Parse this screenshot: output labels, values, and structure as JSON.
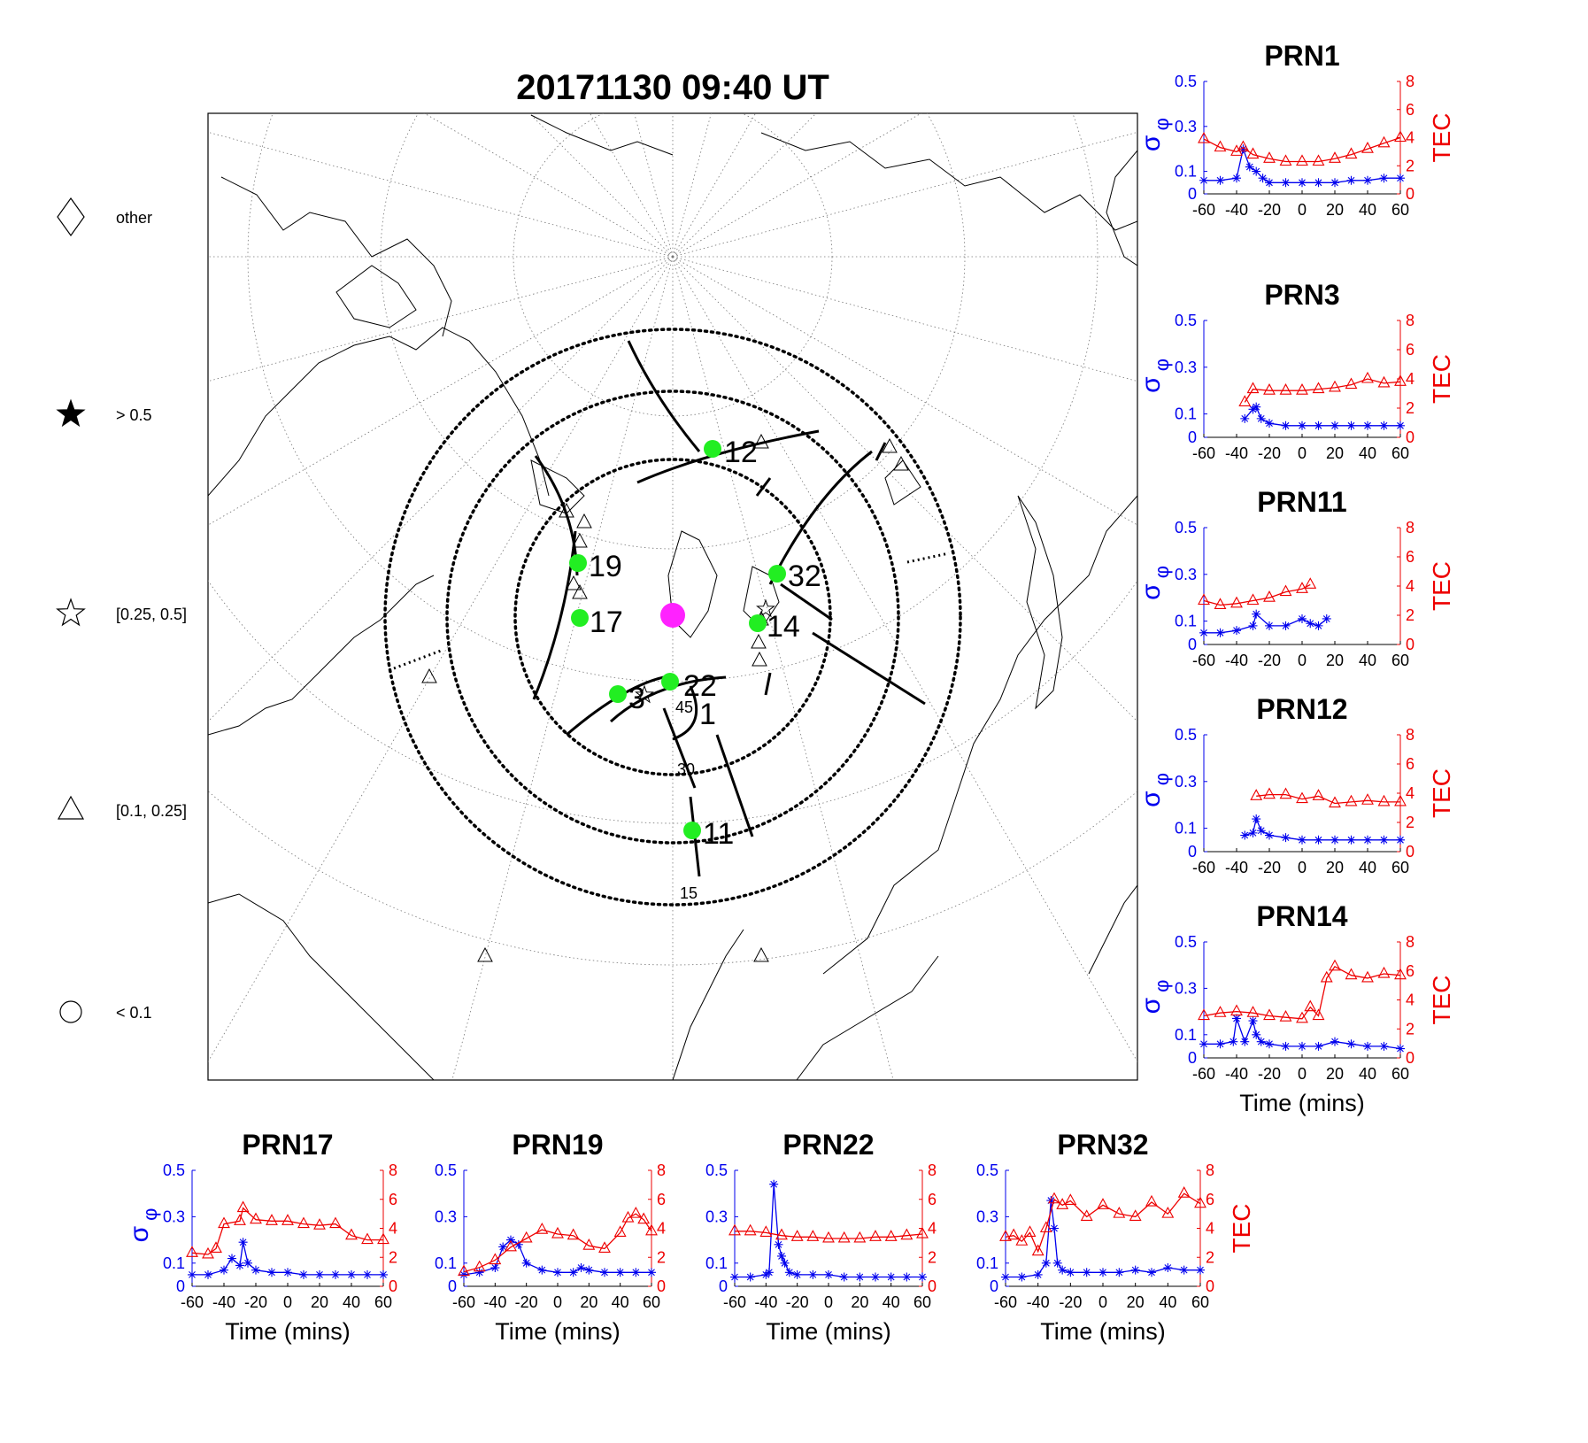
{
  "map": {
    "title": "20171130 09:40 UT",
    "elevation_labels": [
      "45",
      "30",
      "15"
    ],
    "satellites": [
      "12",
      "19",
      "17",
      "32",
      "14",
      "3",
      "22",
      "1",
      "11"
    ],
    "colors": {
      "ipp": "#22ee22",
      "station": "#ff22ff",
      "rings": "#000000"
    }
  },
  "legend": [
    {
      "symbol": "diamond-outline",
      "label": "other"
    },
    {
      "symbol": "star-filled",
      "label": "> 0.5"
    },
    {
      "symbol": "star-outline",
      "label": "[0.25, 0.5]"
    },
    {
      "symbol": "triangle-outline",
      "label": "[0.1, 0.25]"
    },
    {
      "symbol": "circle-outline",
      "label": "< 0.1"
    }
  ],
  "axes_text": {
    "left_ylabel": "σ",
    "left_ylabel_sub": "φ",
    "right_ylabel": "TEC",
    "xlabel": "Time (mins)",
    "left_ticks": [
      "0.5",
      "0.3",
      "0.1",
      "0"
    ],
    "right_ticks": [
      "8",
      "6",
      "4",
      "2",
      "0"
    ],
    "x_ticks": [
      "-60",
      "-40",
      "-20",
      "0",
      "20",
      "40",
      "60"
    ]
  },
  "colors": {
    "sigma": "#0000ee",
    "tec": "#ee0000"
  },
  "chart_data": [
    {
      "type": "line",
      "title": "PRN1",
      "xlim": [
        -60,
        60
      ],
      "ylim_left": [
        0,
        0.5
      ],
      "ylim_right": [
        0,
        8
      ],
      "series": [
        {
          "axis": "left",
          "marker": "asterisk",
          "x": [
            -60,
            -50,
            -40,
            -36,
            -32,
            -28,
            -24,
            -20,
            -10,
            0,
            10,
            20,
            30,
            40,
            50,
            60
          ],
          "values": [
            0.06,
            0.06,
            0.07,
            0.2,
            0.12,
            0.1,
            0.07,
            0.05,
            0.05,
            0.05,
            0.05,
            0.05,
            0.06,
            0.06,
            0.07,
            0.07
          ]
        },
        {
          "axis": "right",
          "marker": "triangle",
          "x": [
            -60,
            -50,
            -40,
            -36,
            -30,
            -20,
            -10,
            0,
            10,
            20,
            30,
            40,
            50,
            60
          ],
          "values": [
            3.9,
            3.3,
            3.0,
            3.3,
            2.8,
            2.5,
            2.3,
            2.3,
            2.3,
            2.5,
            2.8,
            3.2,
            3.6,
            4.0
          ]
        }
      ]
    },
    {
      "type": "line",
      "title": "PRN3",
      "xlim": [
        -60,
        60
      ],
      "ylim_left": [
        0,
        0.5
      ],
      "ylim_right": [
        0,
        8
      ],
      "series": [
        {
          "axis": "left",
          "marker": "asterisk",
          "x": [
            -35,
            -30,
            -28,
            -25,
            -20,
            -10,
            0,
            10,
            20,
            30,
            40,
            50,
            60
          ],
          "values": [
            0.08,
            0.12,
            0.13,
            0.08,
            0.06,
            0.05,
            0.05,
            0.05,
            0.05,
            0.05,
            0.05,
            0.05,
            0.05
          ]
        },
        {
          "axis": "right",
          "marker": "triangle",
          "x": [
            -35,
            -30,
            -20,
            -10,
            0,
            10,
            20,
            30,
            40,
            50,
            60
          ],
          "values": [
            2.4,
            3.3,
            3.2,
            3.2,
            3.2,
            3.3,
            3.4,
            3.6,
            4.0,
            3.7,
            3.8
          ]
        }
      ]
    },
    {
      "type": "line",
      "title": "PRN11",
      "xlim": [
        -60,
        60
      ],
      "ylim_left": [
        0,
        0.5
      ],
      "ylim_right": [
        0,
        8
      ],
      "series": [
        {
          "axis": "left",
          "marker": "asterisk",
          "x": [
            -60,
            -50,
            -40,
            -30,
            -28,
            -20,
            -10,
            0,
            5,
            10,
            15
          ],
          "values": [
            0.05,
            0.05,
            0.06,
            0.08,
            0.13,
            0.08,
            0.08,
            0.11,
            0.09,
            0.08,
            0.11
          ]
        },
        {
          "axis": "right",
          "marker": "triangle",
          "x": [
            -60,
            -50,
            -40,
            -30,
            -20,
            -10,
            0,
            5
          ],
          "values": [
            3.0,
            2.7,
            2.8,
            3.0,
            3.2,
            3.6,
            3.8,
            4.1
          ]
        }
      ]
    },
    {
      "type": "line",
      "title": "PRN12",
      "xlim": [
        -60,
        60
      ],
      "ylim_left": [
        0,
        0.5
      ],
      "ylim_right": [
        0,
        8
      ],
      "series": [
        {
          "axis": "left",
          "marker": "asterisk",
          "x": [
            -35,
            -30,
            -28,
            -25,
            -20,
            -10,
            0,
            10,
            20,
            30,
            40,
            50,
            60
          ],
          "values": [
            0.07,
            0.08,
            0.14,
            0.09,
            0.07,
            0.06,
            0.05,
            0.05,
            0.05,
            0.05,
            0.05,
            0.05,
            0.05
          ]
        },
        {
          "axis": "right",
          "marker": "triangle",
          "x": [
            -28,
            -20,
            -10,
            0,
            10,
            20,
            30,
            40,
            50,
            60
          ],
          "values": [
            3.8,
            3.9,
            3.9,
            3.6,
            3.8,
            3.3,
            3.4,
            3.5,
            3.4,
            3.4
          ]
        }
      ]
    },
    {
      "type": "line",
      "title": "PRN14",
      "xlim": [
        -60,
        60
      ],
      "ylim_left": [
        0,
        0.5
      ],
      "ylim_right": [
        0,
        8
      ],
      "series": [
        {
          "axis": "left",
          "marker": "asterisk",
          "x": [
            -60,
            -50,
            -42,
            -40,
            -35,
            -30,
            -28,
            -25,
            -20,
            -10,
            0,
            10,
            20,
            30,
            40,
            50,
            60
          ],
          "values": [
            0.06,
            0.06,
            0.07,
            0.17,
            0.07,
            0.16,
            0.1,
            0.07,
            0.06,
            0.05,
            0.05,
            0.05,
            0.07,
            0.06,
            0.05,
            0.05,
            0.04
          ]
        },
        {
          "axis": "right",
          "marker": "triangle",
          "x": [
            -60,
            -50,
            -40,
            -30,
            -20,
            -10,
            0,
            5,
            10,
            15,
            20,
            30,
            40,
            50,
            60
          ],
          "values": [
            2.9,
            3.1,
            3.2,
            3.1,
            2.9,
            2.8,
            2.7,
            3.5,
            2.9,
            5.5,
            6.3,
            5.7,
            5.5,
            5.8,
            5.7
          ]
        }
      ]
    },
    {
      "type": "line",
      "title": "PRN17",
      "xlim": [
        -60,
        60
      ],
      "ylim_left": [
        0,
        0.5
      ],
      "ylim_right": [
        0,
        8
      ],
      "series": [
        {
          "axis": "left",
          "marker": "asterisk",
          "x": [
            -60,
            -50,
            -40,
            -35,
            -30,
            -28,
            -25,
            -20,
            -10,
            0,
            10,
            20,
            30,
            40,
            50,
            60
          ],
          "values": [
            0.05,
            0.05,
            0.07,
            0.12,
            0.09,
            0.19,
            0.1,
            0.07,
            0.06,
            0.06,
            0.05,
            0.05,
            0.05,
            0.05,
            0.05,
            0.05
          ]
        },
        {
          "axis": "right",
          "marker": "triangle",
          "x": [
            -60,
            -50,
            -45,
            -40,
            -30,
            -28,
            -20,
            -10,
            0,
            10,
            20,
            30,
            40,
            50,
            60
          ],
          "values": [
            2.3,
            2.2,
            2.6,
            4.3,
            4.5,
            5.4,
            4.6,
            4.5,
            4.5,
            4.3,
            4.2,
            4.3,
            3.5,
            3.2,
            3.2
          ]
        }
      ]
    },
    {
      "type": "line",
      "title": "PRN19",
      "xlim": [
        -60,
        60
      ],
      "ylim_left": [
        0,
        0.5
      ],
      "ylim_right": [
        0,
        8
      ],
      "series": [
        {
          "axis": "left",
          "marker": "asterisk",
          "x": [
            -60,
            -50,
            -40,
            -35,
            -30,
            -25,
            -20,
            -10,
            0,
            10,
            15,
            20,
            30,
            40,
            50,
            60
          ],
          "values": [
            0.05,
            0.06,
            0.08,
            0.17,
            0.2,
            0.18,
            0.1,
            0.07,
            0.06,
            0.06,
            0.08,
            0.07,
            0.06,
            0.06,
            0.06,
            0.06
          ]
        },
        {
          "axis": "right",
          "marker": "triangle",
          "x": [
            -60,
            -50,
            -40,
            -30,
            -20,
            -10,
            0,
            10,
            20,
            30,
            40,
            45,
            50,
            55,
            60
          ],
          "values": [
            1.0,
            1.3,
            1.8,
            2.7,
            3.3,
            3.9,
            3.6,
            3.5,
            2.8,
            2.6,
            3.7,
            4.7,
            5.0,
            4.6,
            3.8
          ]
        }
      ]
    },
    {
      "type": "line",
      "title": "PRN22",
      "xlim": [
        -60,
        60
      ],
      "ylim_left": [
        0,
        0.5
      ],
      "ylim_right": [
        0,
        8
      ],
      "series": [
        {
          "axis": "left",
          "marker": "asterisk",
          "x": [
            -60,
            -50,
            -40,
            -38,
            -35,
            -32,
            -30,
            -28,
            -25,
            -20,
            -10,
            0,
            10,
            20,
            30,
            40,
            50,
            60
          ],
          "values": [
            0.04,
            0.04,
            0.05,
            0.06,
            0.44,
            0.18,
            0.13,
            0.1,
            0.06,
            0.05,
            0.05,
            0.05,
            0.04,
            0.04,
            0.04,
            0.04,
            0.04,
            0.04
          ]
        },
        {
          "axis": "right",
          "marker": "triangle",
          "x": [
            -60,
            -50,
            -40,
            -30,
            -20,
            -10,
            0,
            10,
            20,
            30,
            40,
            50,
            60
          ],
          "values": [
            3.8,
            3.8,
            3.7,
            3.5,
            3.4,
            3.4,
            3.3,
            3.3,
            3.3,
            3.4,
            3.4,
            3.5,
            3.6
          ]
        }
      ]
    },
    {
      "type": "line",
      "title": "PRN32",
      "xlim": [
        -60,
        60
      ],
      "ylim_left": [
        0,
        0.5
      ],
      "ylim_right": [
        0,
        8
      ],
      "series": [
        {
          "axis": "left",
          "marker": "asterisk",
          "x": [
            -60,
            -50,
            -40,
            -35,
            -32,
            -30,
            -28,
            -25,
            -20,
            -10,
            0,
            10,
            20,
            30,
            40,
            50,
            60
          ],
          "values": [
            0.04,
            0.04,
            0.05,
            0.1,
            0.37,
            0.25,
            0.1,
            0.07,
            0.06,
            0.06,
            0.06,
            0.06,
            0.07,
            0.06,
            0.08,
            0.07,
            0.07
          ]
        },
        {
          "axis": "right",
          "marker": "triangle",
          "x": [
            -60,
            -55,
            -50,
            -45,
            -40,
            -35,
            -30,
            -25,
            -20,
            -10,
            0,
            10,
            20,
            30,
            40,
            50,
            60
          ],
          "values": [
            3.4,
            3.5,
            3.1,
            3.7,
            2.4,
            4.0,
            6.0,
            5.6,
            5.9,
            4.8,
            5.6,
            5.0,
            4.8,
            5.8,
            5.0,
            6.4,
            5.7
          ]
        }
      ]
    }
  ]
}
